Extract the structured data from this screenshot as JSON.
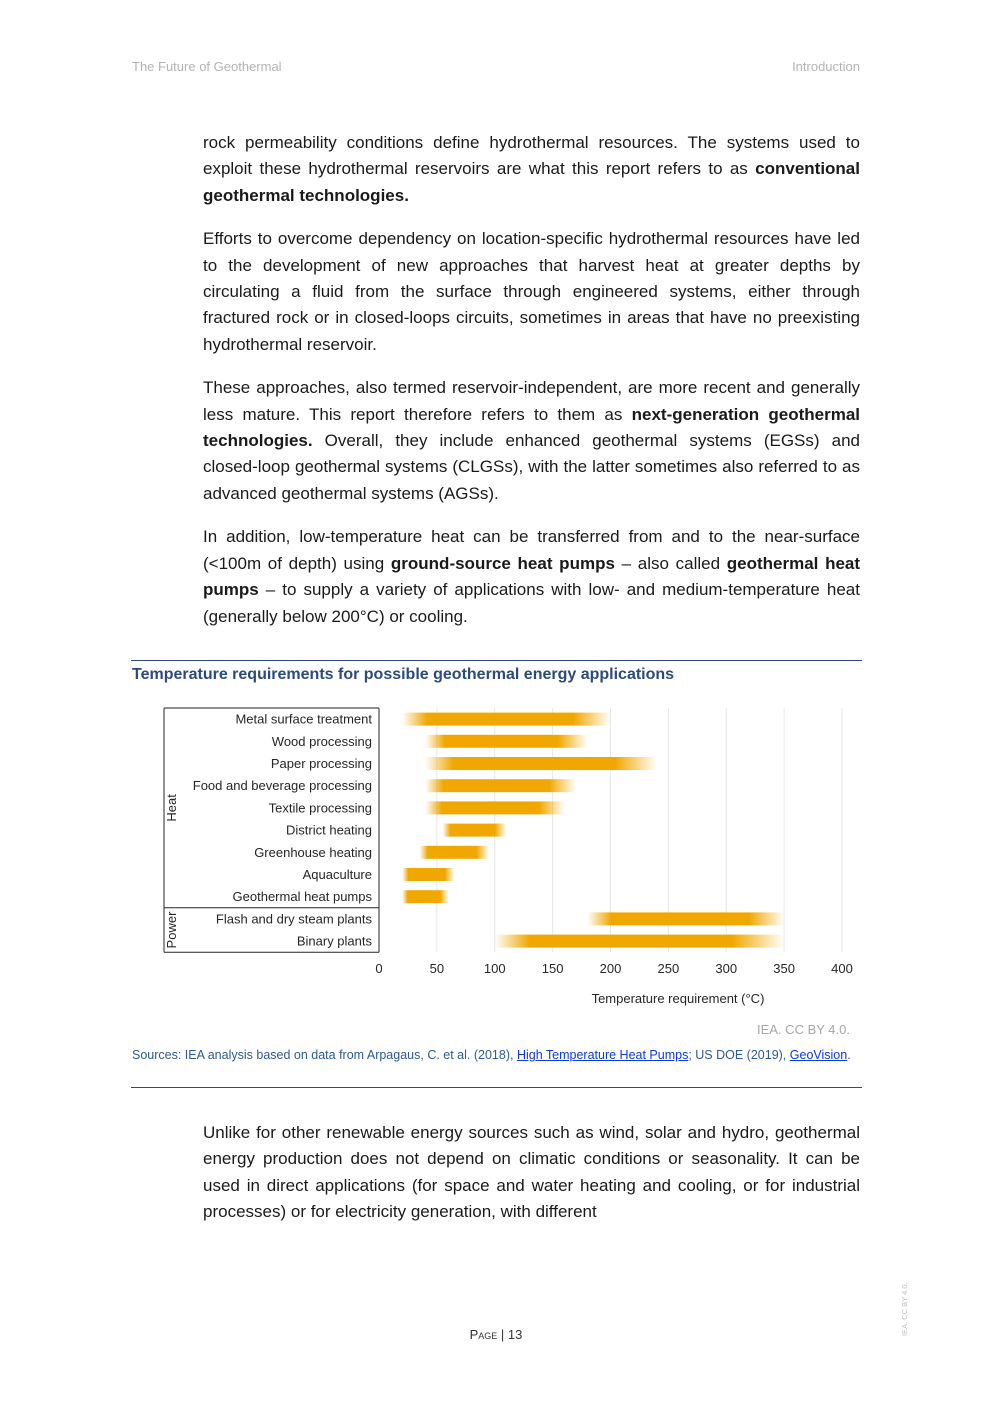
{
  "header": {
    "left": "The Future of Geothermal",
    "right": "Introduction"
  },
  "paragraphs": {
    "p1": {
      "t1": "rock permeability conditions define hydrothermal resources. The systems used to exploit these hydrothermal reservoirs are what this report refers to as ",
      "b1": "conventional geothermal technologies."
    },
    "p2": {
      "t1": "Efforts to overcome dependency on location-specific hydrothermal resources have led to the development of new approaches that harvest heat at greater depths by circulating a fluid from the surface through engineered systems, either through fractured rock or in closed-loops circuits, sometimes in areas that have no preexisting hydrothermal reservoir."
    },
    "p3": {
      "t1": "These approaches, also termed reservoir-independent, are more recent and generally less mature. This report therefore refers to them as ",
      "b1": "next-generation geothermal technologies.",
      "t2": " Overall, they include enhanced geothermal systems (EGSs) and closed-loop geothermal systems (CLGSs), with the latter sometimes also referred to as advanced geothermal systems (AGSs)."
    },
    "p4": {
      "t1": "In addition, low-temperature heat can be transferred from and to the near-surface (<100m of depth) using ",
      "b1": "ground-source heat pumps",
      "t2": " – also called ",
      "b2": "geothermal heat pumps",
      "t3": " – to supply a variety of applications with low- and medium-temperature heat (generally below 200°C) or cooling."
    },
    "p5": {
      "t1": "Unlike for other renewable energy sources such as wind, solar and hydro, geothermal energy production does not depend on climatic conditions or seasonality. It can be used in direct applications (for space and water heating and cooling, or for industrial processes) or for electricity generation, with different"
    }
  },
  "figure": {
    "title": "Temperature requirements for possible geothermal energy applications",
    "credit": "IEA. CC BY 4.0.",
    "sources": {
      "prefix": "Sources: IEA analysis based on data from Arpagaus, C. et al. (2018), ",
      "link1": "High Temperature Heat Pumps",
      "middle": "; US DOE (2019), ",
      "link2": "GeoVision",
      "suffix": "."
    }
  },
  "chart_data": {
    "type": "bar",
    "orientation": "horizontal-range",
    "title": "",
    "xlabel": "Temperature requirement (°C)",
    "ylabel": "",
    "xlim": [
      0,
      400
    ],
    "xticks": [
      0,
      50,
      100,
      150,
      200,
      250,
      300,
      350,
      400
    ],
    "grid": "vertical",
    "bar_color": "#f0a800",
    "groups": [
      {
        "name": "Heat",
        "categories": [
          "Metal surface treatment",
          "Wood processing",
          "Paper processing",
          "Food and beverage processing",
          "Textile processing",
          "District heating",
          "Greenhouse heating",
          "Aquaculture",
          "Geothermal heat pumps"
        ]
      },
      {
        "name": "Power",
        "categories": [
          "Flash and dry steam plants",
          "Binary plants"
        ]
      }
    ],
    "categories": [
      "Metal surface treatment",
      "Wood processing",
      "Paper processing",
      "Food and beverage processing",
      "Textile processing",
      "District heating",
      "Greenhouse heating",
      "Aquaculture",
      "Geothermal heat pumps",
      "Flash and dry steam plants",
      "Binary plants"
    ],
    "ranges": [
      [
        20,
        200
      ],
      [
        40,
        180
      ],
      [
        40,
        240
      ],
      [
        40,
        170
      ],
      [
        40,
        160
      ],
      [
        55,
        110
      ],
      [
        35,
        95
      ],
      [
        20,
        65
      ],
      [
        20,
        60
      ],
      [
        180,
        350
      ],
      [
        100,
        350
      ]
    ]
  },
  "footer": {
    "page_label": "Page",
    "separator": " | ",
    "page_number": "13"
  },
  "side_credit": "IEA. CC BY 4.0."
}
